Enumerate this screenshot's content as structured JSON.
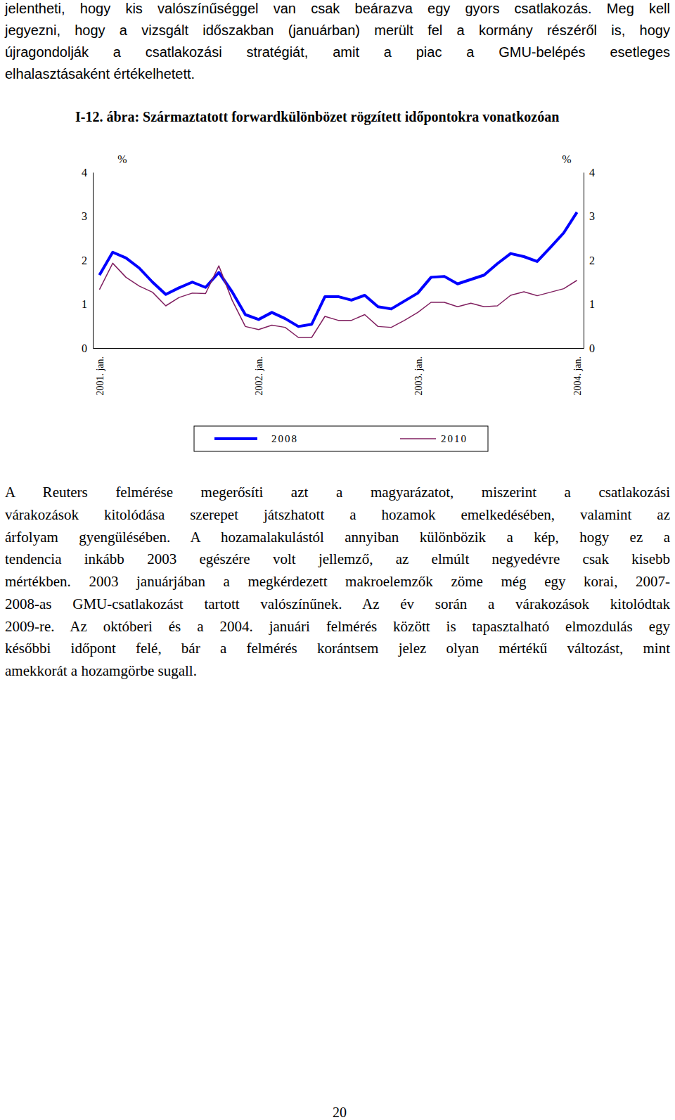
{
  "text_before": {
    "lines": [
      "jelentheti, hogy kis valószínűséggel van csak beárazva egy gyors csatlakozás. Meg kell",
      "jegyezni, hogy a vizsgált időszakban (januárban) merült fel a kormány részéről is, hogy",
      "újragondolják a csatlakozási stratégiát, amit a piac a GMU-belépés esetleges",
      "elhalasztásaként értékelhetett."
    ]
  },
  "chart_data": {
    "type": "line",
    "title": "I-12. ábra: Származtatott forwardkülönbözet rögzített időpontokra vonatkozóan",
    "categories": [
      "2001. jan.",
      null,
      null,
      null,
      null,
      null,
      null,
      null,
      null,
      null,
      null,
      null,
      "2002. jan.",
      null,
      null,
      null,
      null,
      null,
      null,
      null,
      null,
      null,
      null,
      null,
      "2003. jan.",
      null,
      null,
      null,
      null,
      null,
      null,
      null,
      null,
      null,
      null,
      null,
      "2004. jan."
    ],
    "series": [
      {
        "name": "2008",
        "color": "#0000ff",
        "line_style": "solid",
        "values": [
          1.66,
          2.18,
          2.05,
          1.82,
          1.5,
          1.22,
          1.37,
          1.5,
          1.38,
          1.72,
          1.28,
          0.76,
          0.65,
          0.81,
          0.67,
          0.49,
          0.54,
          1.17,
          1.17,
          1.09,
          1.2,
          0.94,
          0.89,
          1.07,
          1.25,
          1.61,
          1.63,
          1.46,
          1.56,
          1.66,
          1.92,
          2.15,
          2.08,
          1.97,
          2.29,
          2.62,
          3.09
        ]
      },
      {
        "name": "2010",
        "color": "#802060",
        "line_style": "solid",
        "values": [
          1.33,
          1.93,
          1.61,
          1.41,
          1.27,
          0.96,
          1.15,
          1.25,
          1.24,
          1.87,
          1.09,
          0.49,
          0.42,
          0.52,
          0.47,
          0.24,
          0.24,
          0.72,
          0.63,
          0.63,
          0.76,
          0.49,
          0.47,
          0.63,
          0.81,
          1.04,
          1.04,
          0.94,
          1.02,
          0.94,
          0.96,
          1.2,
          1.28,
          1.19,
          1.27,
          1.35,
          1.54
        ]
      }
    ],
    "y_label": "%",
    "y2_label": "%",
    "ylim": [
      0,
      4
    ],
    "yticks": [
      0,
      1,
      2,
      3,
      4
    ],
    "y2lim": [
      0,
      4
    ],
    "y2ticks": [
      0,
      1,
      2,
      3,
      4
    ],
    "grid": false,
    "legend": "bottom"
  },
  "text_after": {
    "lines": [
      "A Reuters felmérése megerősíti azt a magyarázatot, miszerint a csatlakozási",
      "várakozások kitolódása szerepet játszhatott a hozamok emelkedésében, valamint az",
      "árfolyam gyengülésében. A hozamalakulástól annyiban különbözik a kép, hogy ez a",
      "tendencia inkább 2003 egészére volt jellemző, az elmúlt negyedévre csak kisebb",
      "mértékben. 2003 januárjában a megkérdezett makroelemzők zöme még egy korai, 2007-",
      "2008-as GMU-csatlakozást tartott valószínűnek. Az év során a várakozások kitolódtak",
      "2009-re. Az októberi és a 2004. januári felmérés között is tapasztalható elmozdulás egy",
      "későbbi időpont felé, bár a felmérés korántsem jelez olyan mértékű változást, mint",
      "amekkorát a hozamgörbe sugall."
    ]
  },
  "page_number": "20"
}
